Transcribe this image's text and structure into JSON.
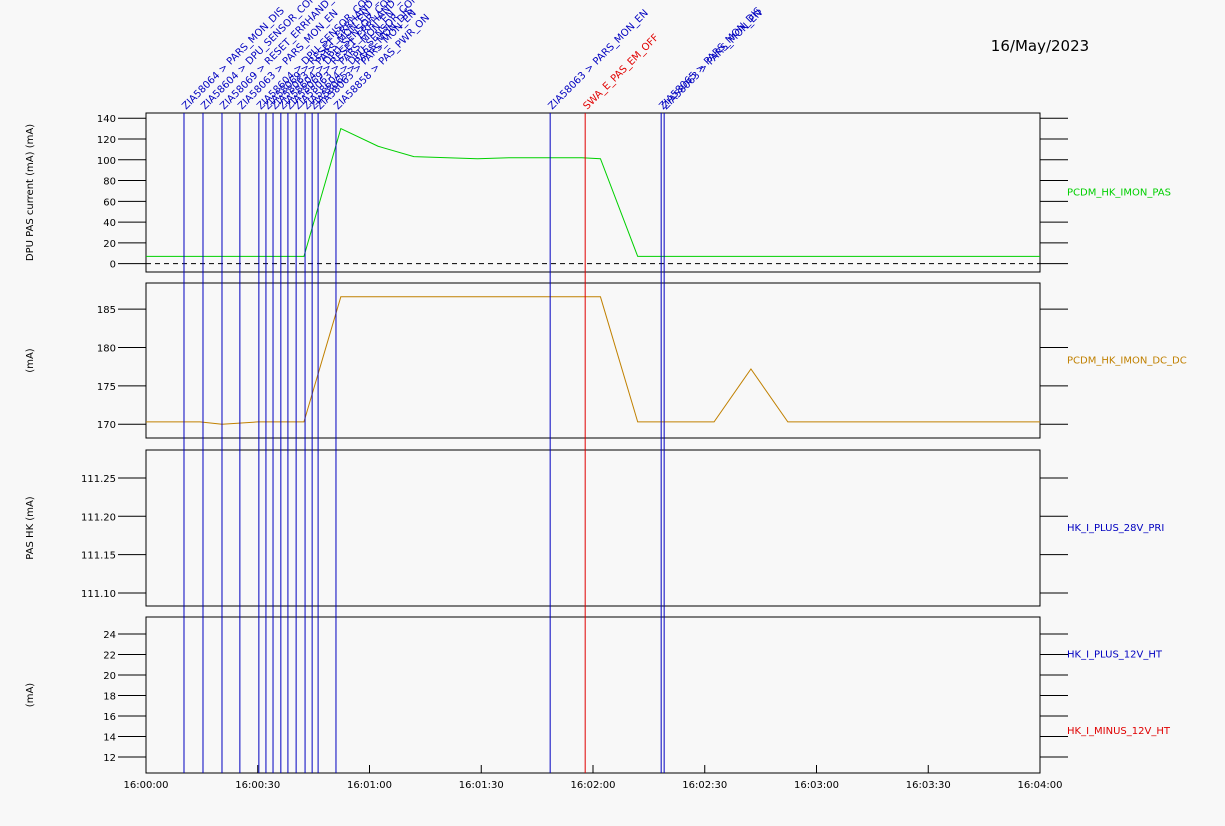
{
  "date": "16/May/2023",
  "events": {
    "x": [
      10.2,
      15.3,
      20.4,
      25.2,
      30.3,
      32.2,
      34.1,
      36.2,
      38.1,
      40.3,
      42.7,
      44.6,
      46.2,
      51.0,
      108.5,
      117.9,
      138.3,
      139.1
    ],
    "labels": [
      "ZIA58064 > PARS_MON_DIS",
      "ZIA58604 > DPU_SENSOR_CON",
      "ZIA58069 > RESET_ERRHAND_C",
      "ZIA58063 > PARS_MON_EN",
      "ZIA58604 > DPU_SENSOR_CON",
      "ZIA58069 > RESET_ERRHAND_C",
      "ZIA58063 > PARS_MON_EN",
      "ZIA58604 > DPU_SENSOR_CON",
      "ZIA58069 > RESET_ERRHAND_C",
      "ZIA58063 > PARS_MON_EN",
      "ZIA58604 > DPU_SENSOR_CON",
      "ZIA58065 > PARS_MON_DIS",
      "ZIA58063 > PARS_MON_EN",
      "ZIA58858 > PAS_PWR_ON",
      "ZIA58063 > PARS_MON_EN",
      "SWA_E_PAS_EM_OFF",
      "ZIA58065 > PARS_MON_DIS",
      "ZIA58063 > PARS_MON_EN"
    ],
    "colors": [
      "#0000c0",
      "#0000c0",
      "#0000c0",
      "#0000c0",
      "#0000c0",
      "#0000c0",
      "#0000c0",
      "#0000c0",
      "#0000c0",
      "#0000c0",
      "#0000c0",
      "#0000c0",
      "#0000c0",
      "#0000c0",
      "#0000c0",
      "#e00000",
      "#0000c0",
      "#0000c0"
    ]
  },
  "chart_data": [
    {
      "type": "line",
      "ylabel": "DPU PAS current (mA)  (mA)",
      "xlim": [
        0,
        240
      ],
      "ylim": [
        -8,
        145
      ],
      "yticks": [
        0,
        20,
        40,
        60,
        80,
        100,
        120,
        140
      ],
      "reference_line": 0,
      "series": [
        {
          "name": "PCDM_HK_IMON_PAS",
          "color": "#00d000",
          "x": [
            0,
            42.4,
            52.3,
            62.3,
            71.9,
            89,
            97.7,
            117,
            122,
            132,
            240
          ],
          "values": [
            7,
            7,
            130,
            113,
            103,
            101,
            102,
            102,
            101,
            7,
            7
          ]
        }
      ]
    },
    {
      "type": "line",
      "ylabel": "(mA)",
      "xlim": [
        0,
        240
      ],
      "ylim": [
        168.2,
        188.4
      ],
      "yticks": [
        170,
        175,
        180,
        185
      ],
      "series": [
        {
          "name": "PCDM_HK_IMON_DC_DC",
          "color": "#c08000",
          "x": [
            0,
            14.5,
            20.4,
            30,
            42.4,
            52.3,
            122,
            132,
            152.5,
            162.4,
            172.3,
            240
          ],
          "values": [
            170.3,
            170.3,
            170,
            170.3,
            170.3,
            186.6,
            186.6,
            170.3,
            170.3,
            177.2,
            170.3,
            170.3
          ]
        }
      ]
    },
    {
      "type": "line",
      "ylabel": "PAS HK  (mA)",
      "xlim": [
        0,
        240
      ],
      "ylim": [
        111.083,
        111.2865
      ],
      "yticks": [
        {
          "value": 111.1,
          "label": "111.10"
        },
        {
          "value": 111.15,
          "label": "111.15"
        },
        {
          "value": 111.2,
          "label": "111.20"
        },
        {
          "value": 111.25,
          "label": "111.25"
        }
      ],
      "series": [
        {
          "name": "HK_I_PLUS_28V_PRI",
          "color": "#0000c0",
          "x": [],
          "values": []
        }
      ]
    },
    {
      "type": "line",
      "ylabel": "(mA)",
      "xlim": [
        0,
        240
      ],
      "ylim": [
        10.44,
        25.66
      ],
      "yticks": [
        12,
        14,
        16,
        18,
        20,
        22,
        24
      ],
      "xticks": [
        {
          "value": 0,
          "label": "16:00:00"
        },
        {
          "value": 30,
          "label": "16:00:30"
        },
        {
          "value": 60,
          "label": "16:01:00"
        },
        {
          "value": 90,
          "label": "16:01:30"
        },
        {
          "value": 120,
          "label": "16:02:00"
        },
        {
          "value": 150,
          "label": "16:02:30"
        },
        {
          "value": 180,
          "label": "16:03:00"
        },
        {
          "value": 210,
          "label": "16:03:30"
        },
        {
          "value": 240,
          "label": "16:04:00"
        }
      ],
      "series": [
        {
          "name": "HK_I_PLUS_12V_HT",
          "color": "#0000c0",
          "x": [],
          "values": []
        },
        {
          "name": "HK_I_MINUS_12V_HT",
          "color": "#e00000",
          "x": [],
          "values": []
        }
      ]
    }
  ]
}
